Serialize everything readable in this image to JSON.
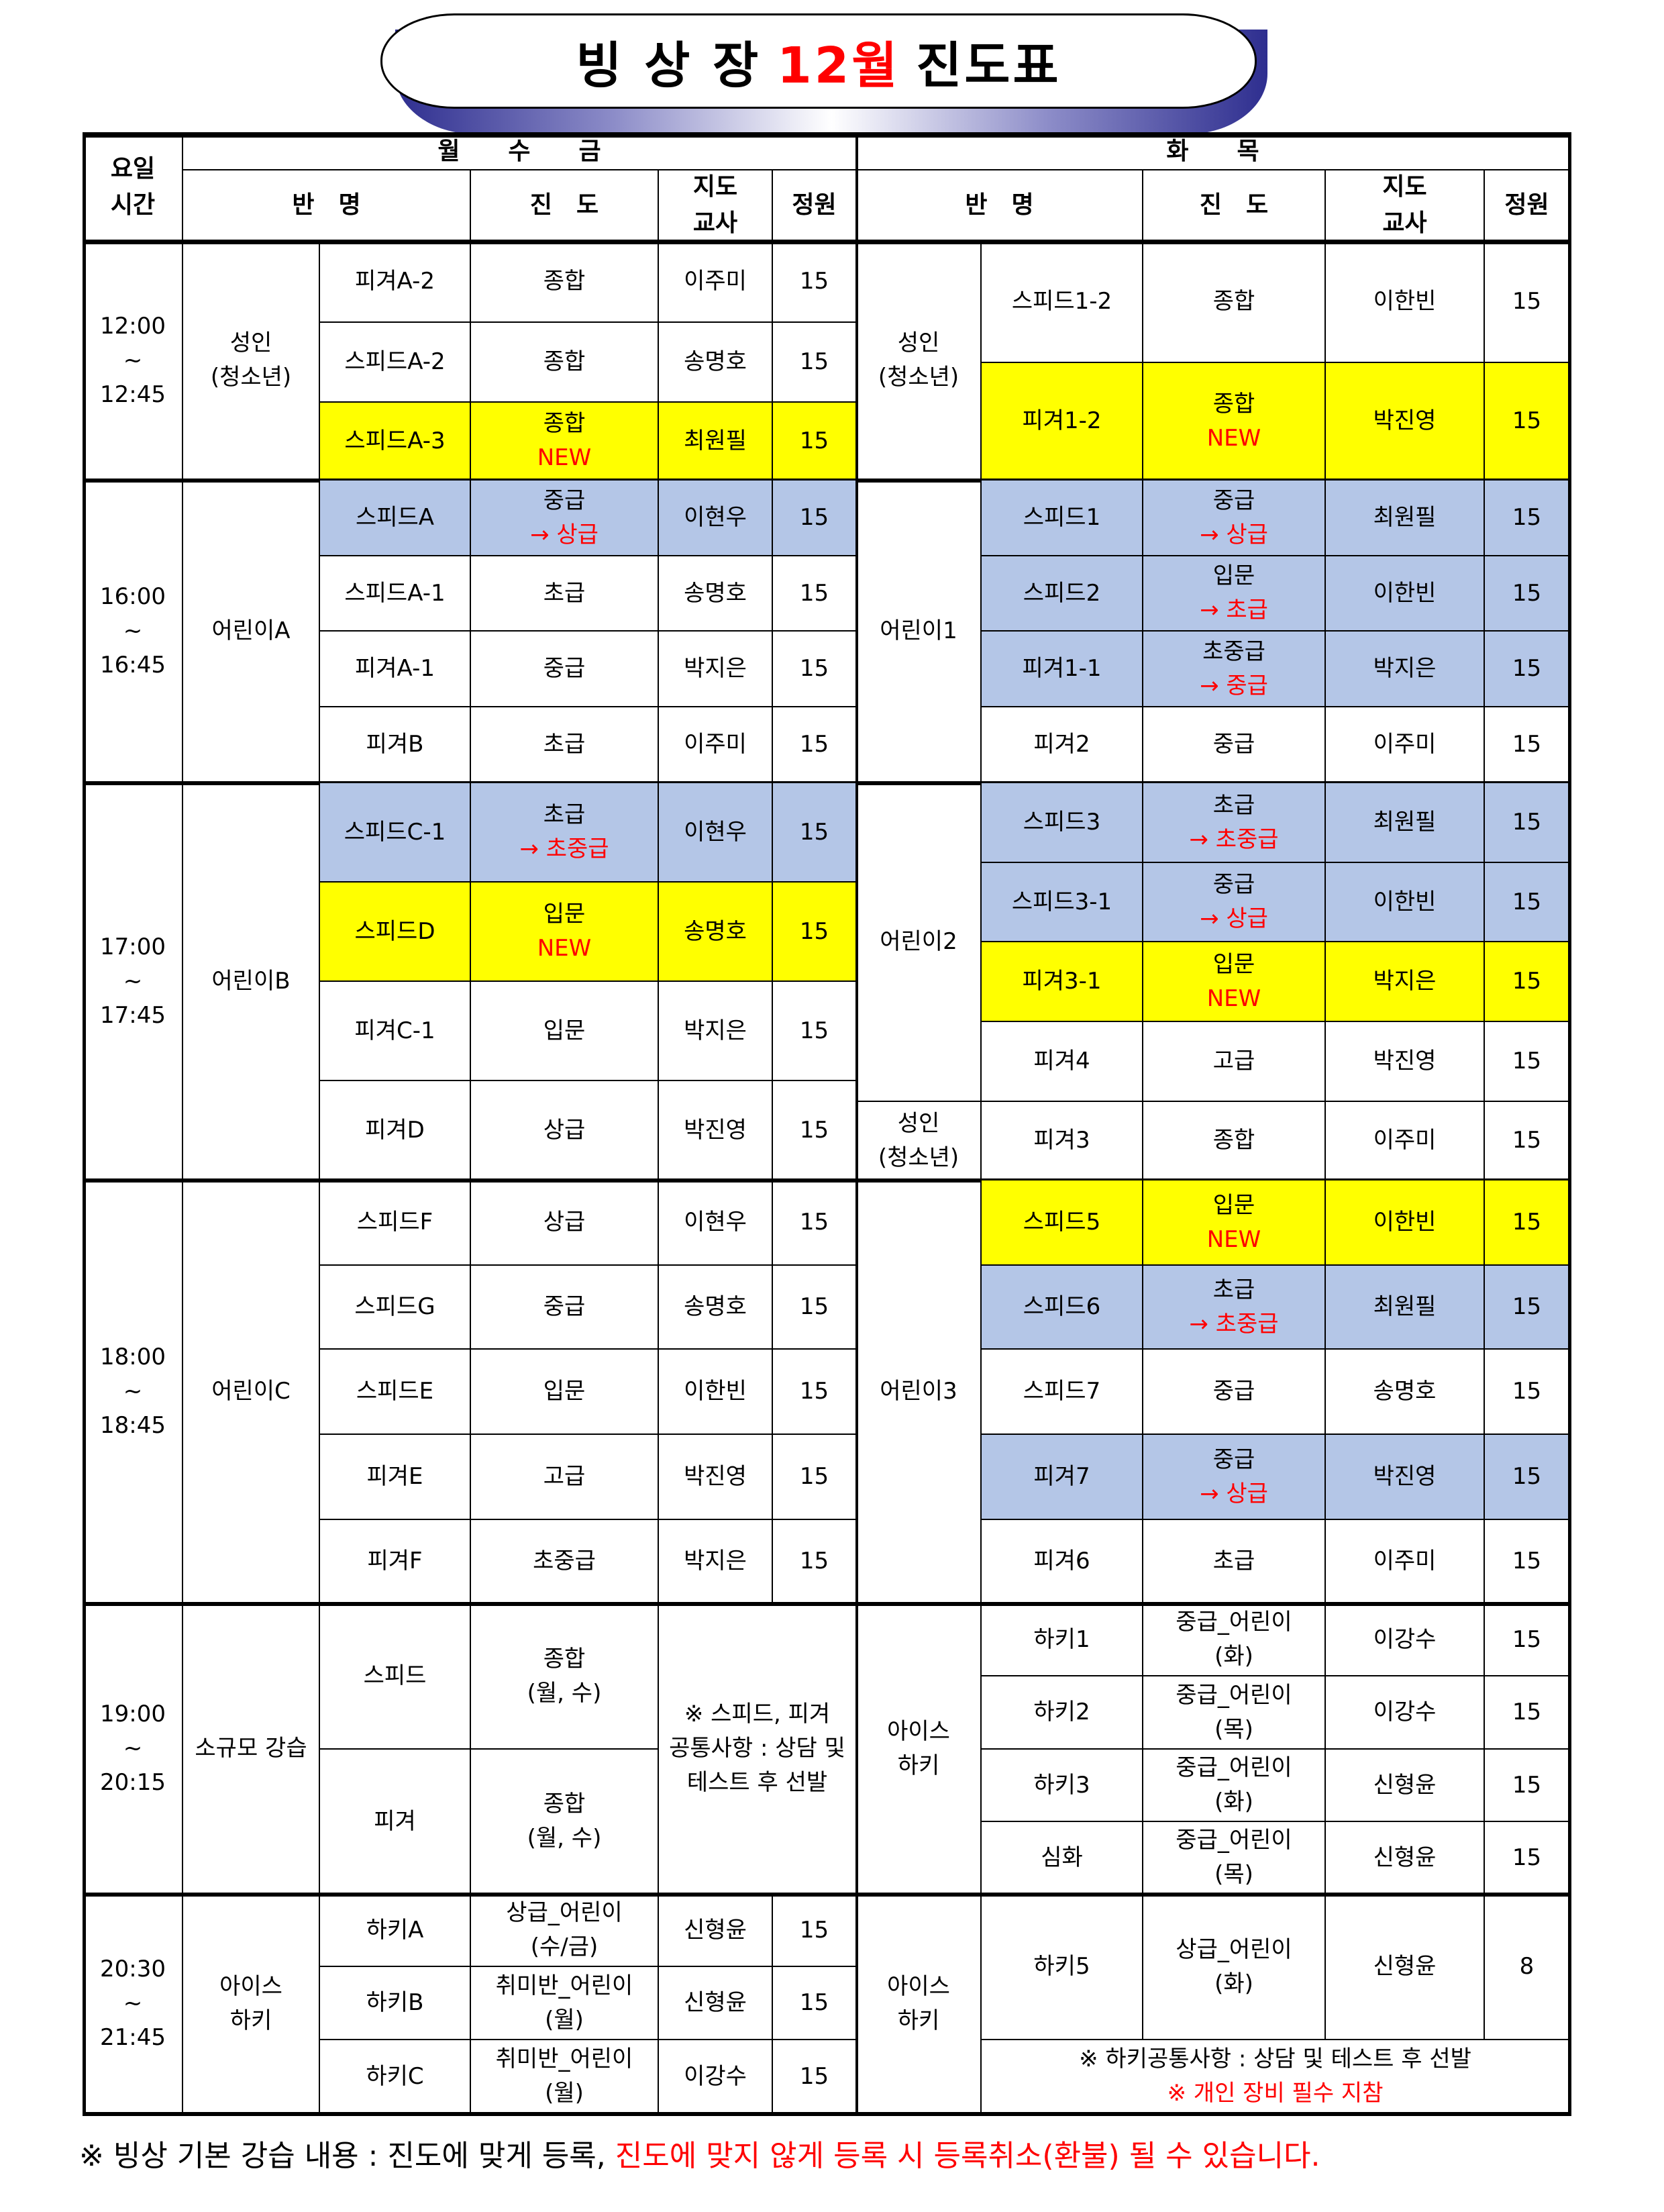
{
  "title": {
    "prefix": "빙 상 장",
    "month": "12월",
    "suffix": "진도표"
  },
  "colors": {
    "new": "#ffff00",
    "upgrade": "#b4c6e7",
    "accent": "#ff0000",
    "title_shadow": "#2e2e8f"
  },
  "header": {
    "day_time": "요일\n시간",
    "mwf": "월　　수　　금",
    "tt": "화　　목",
    "class_name": "반　명",
    "level": "진　도",
    "teacher": "지도\n교사",
    "capacity": "정원"
  },
  "sections": [
    {
      "time": [
        "12:00",
        "~",
        "12:45"
      ],
      "left_group": "성인\n(청소년)",
      "left_rows": [
        {
          "class": "피겨A-2",
          "level": "종합",
          "teacher": "이주미",
          "capacity": "15"
        },
        {
          "class": "스피드A-2",
          "level": "종합",
          "teacher": "송명호",
          "capacity": "15"
        },
        {
          "class": "스피드A-3",
          "level": "종합",
          "level_change": "NEW",
          "teacher": "최원필",
          "capacity": "15",
          "highlight": "new"
        }
      ],
      "right_groups": [
        "성인\n(청소년)"
      ],
      "right_rows": [
        {
          "class": "스피드1-2",
          "level": "종합",
          "teacher": "이한빈",
          "capacity": "15"
        },
        {
          "class": "피겨1-2",
          "level": "종합",
          "level_change": "NEW",
          "teacher": "박진영",
          "capacity": "15",
          "highlight": "new"
        }
      ]
    },
    {
      "time": [
        "16:00",
        "~",
        "16:45"
      ],
      "left_group": "어린이A",
      "left_rows": [
        {
          "class": "스피드A",
          "level": "중급",
          "level_change": "→ 상급",
          "teacher": "이현우",
          "capacity": "15",
          "highlight": "upgrade"
        },
        {
          "class": "스피드A-1",
          "level": "초급",
          "teacher": "송명호",
          "capacity": "15"
        },
        {
          "class": "피겨A-1",
          "level": "중급",
          "teacher": "박지은",
          "capacity": "15"
        },
        {
          "class": "피겨B",
          "level": "초급",
          "teacher": "이주미",
          "capacity": "15"
        }
      ],
      "right_groups": [
        "어린이1"
      ],
      "right_rows": [
        {
          "class": "스피드1",
          "level": "중급",
          "level_change": "→ 상급",
          "teacher": "최원필",
          "capacity": "15",
          "highlight": "upgrade"
        },
        {
          "class": "스피드2",
          "level": "입문",
          "level_change": "→ 초급",
          "teacher": "이한빈",
          "capacity": "15",
          "highlight": "upgrade"
        },
        {
          "class": "피겨1-1",
          "level": "초중급",
          "level_change": "→ 중급",
          "teacher": "박지은",
          "capacity": "15",
          "highlight": "upgrade"
        },
        {
          "class": "피겨2",
          "level": "중급",
          "teacher": "이주미",
          "capacity": "15"
        }
      ]
    },
    {
      "time": [
        "17:00",
        "~",
        "17:45"
      ],
      "left_group": "어린이B",
      "left_rows": [
        {
          "class": "스피드C-1",
          "level": "초급",
          "level_change": "→ 초중급",
          "teacher": "이현우",
          "capacity": "15",
          "highlight": "upgrade"
        },
        {
          "class": "스피드D",
          "level": "입문",
          "level_change": "NEW",
          "teacher": "송명호",
          "capacity": "15",
          "highlight": "new"
        },
        {
          "class": "피겨C-1",
          "level": "입문",
          "teacher": "박지은",
          "capacity": "15"
        },
        {
          "class": "피겨D",
          "level": "상급",
          "teacher": "박진영",
          "capacity": "15"
        }
      ],
      "right_groups": [
        "어린이2",
        "성인\n(청소년)"
      ],
      "right_rows": [
        {
          "class": "스피드3",
          "level": "초급",
          "level_change": "→ 초중급",
          "teacher": "최원필",
          "capacity": "15",
          "highlight": "upgrade"
        },
        {
          "class": "스피드3-1",
          "level": "중급",
          "level_change": "→ 상급",
          "teacher": "이한빈",
          "capacity": "15",
          "highlight": "upgrade"
        },
        {
          "class": "피겨3-1",
          "level": "입문",
          "level_change": "NEW",
          "teacher": "박지은",
          "capacity": "15",
          "highlight": "new"
        },
        {
          "class": "피겨4",
          "level": "고급",
          "teacher": "박진영",
          "capacity": "15"
        },
        {
          "class": "피겨3",
          "level": "종합",
          "teacher": "이주미",
          "capacity": "15"
        }
      ]
    },
    {
      "time": [
        "18:00",
        "~",
        "18:45"
      ],
      "left_group": "어린이C",
      "left_rows": [
        {
          "class": "스피드F",
          "level": "상급",
          "teacher": "이현우",
          "capacity": "15"
        },
        {
          "class": "스피드G",
          "level": "중급",
          "teacher": "송명호",
          "capacity": "15"
        },
        {
          "class": "스피드E",
          "level": "입문",
          "teacher": "이한빈",
          "capacity": "15"
        },
        {
          "class": "피겨E",
          "level": "고급",
          "teacher": "박진영",
          "capacity": "15"
        },
        {
          "class": "피겨F",
          "level": "초중급",
          "teacher": "박지은",
          "capacity": "15"
        }
      ],
      "right_groups": [
        "어린이3"
      ],
      "right_rows": [
        {
          "class": "스피드5",
          "level": "입문",
          "level_change": "NEW",
          "teacher": "이한빈",
          "capacity": "15",
          "highlight": "new"
        },
        {
          "class": "스피드6",
          "level": "초급",
          "level_change": "→ 초중급",
          "teacher": "최원필",
          "capacity": "15",
          "highlight": "upgrade"
        },
        {
          "class": "스피드7",
          "level": "중급",
          "teacher": "송명호",
          "capacity": "15"
        },
        {
          "class": "피겨7",
          "level": "중급",
          "level_change": "→ 상급",
          "teacher": "박진영",
          "capacity": "15",
          "highlight": "upgrade"
        },
        {
          "class": "피겨6",
          "level": "초급",
          "teacher": "이주미",
          "capacity": "15"
        }
      ]
    },
    {
      "time": [
        "19:00",
        "~",
        "20:15"
      ],
      "left_group": "소규모 강습",
      "left_rows": [
        {
          "class": "스피드",
          "level": "종합\n(월, 수)"
        },
        {
          "class": "피겨",
          "level": "종합\n(월, 수)"
        }
      ],
      "left_note": "※ 스피드, 피겨\n공통사항 : 상담 및\n테스트 후 선발",
      "right_groups": [
        "아이스\n하키"
      ],
      "right_rows": [
        {
          "class": "하키1",
          "level": "중급_어린이\n(화)",
          "teacher": "이강수",
          "capacity": "15"
        },
        {
          "class": "하키2",
          "level": "중급_어린이\n(목)",
          "teacher": "이강수",
          "capacity": "15"
        },
        {
          "class": "하키3",
          "level": "중급_어린이\n(화)",
          "teacher": "신형윤",
          "capacity": "15"
        },
        {
          "class": "심화",
          "level": "중급_어린이\n(목)",
          "teacher": "신형윤",
          "capacity": "15"
        }
      ]
    },
    {
      "time": [
        "20:30",
        "~",
        "21:45"
      ],
      "left_group": "아이스\n하키",
      "left_rows": [
        {
          "class": "하키A",
          "level": "상급_어린이\n(수/금)",
          "teacher": "신형윤",
          "capacity": "15"
        },
        {
          "class": "하키B",
          "level": "취미반_어린이\n(월)",
          "teacher": "신형윤",
          "capacity": "15"
        },
        {
          "class": "하키C",
          "level": "취미반_어린이\n(월)",
          "teacher": "이강수",
          "capacity": "15"
        }
      ],
      "right_groups": [
        "아이스\n하키"
      ],
      "right_rows": [
        {
          "class": "하키5",
          "level": "상급_어린이\n(화)",
          "teacher": "신형윤",
          "capacity": "8"
        }
      ],
      "right_note": "※ 하키공통사항 : 상담 및 테스트 후 선발",
      "right_note_red": "※ 개인 장비 필수 지참"
    }
  ],
  "footer": {
    "text": "※ 빙상 기본 강습 내용 : 진도에 맞게 등록, ",
    "warning": "진도에 맞지 않게 등록 시 등록취소(환불) 될 수 있습니다."
  }
}
